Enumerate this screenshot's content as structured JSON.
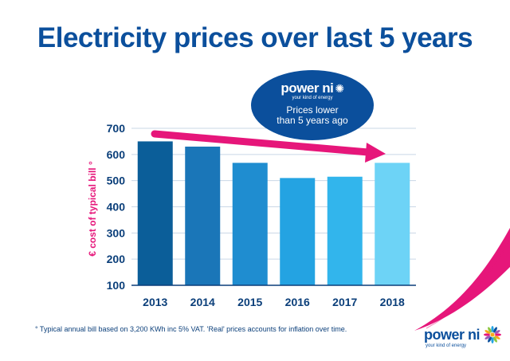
{
  "title": "Electricity prices over last 5 years",
  "callout": {
    "brand": "power ni",
    "tagline": "your kind of energy",
    "line1": "Prices lower",
    "line2": "than 5 years ago"
  },
  "footnote": "° Typical annual bill based on 3,200 KWh inc 5% VAT. 'Real' prices accounts for inflation over time.",
  "logo": {
    "brand": "power ni",
    "tagline": "your kind of energy"
  },
  "colors": {
    "title": "#0b4f9c",
    "accent": "#e6167a",
    "axis_text": "#0b3f7a"
  },
  "icons": {
    "callout_sun": "sun-icon",
    "logo_flower": "flower-icon"
  },
  "chart_data": {
    "type": "bar",
    "categories": [
      "2013",
      "2014",
      "2015",
      "2016",
      "2017",
      "2018"
    ],
    "values": [
      650,
      630,
      568,
      510,
      515,
      568
    ],
    "bar_colors": [
      "#0b5e99",
      "#1a76b8",
      "#1f8dd0",
      "#24a3e2",
      "#32b5ec",
      "#6dd3f6"
    ],
    "ylabel": "€ cost of typical bill °",
    "ylim": [
      100,
      700
    ],
    "yticks": [
      100,
      200,
      300,
      400,
      500,
      600,
      700
    ],
    "grid": true,
    "trend_arrow": "downward from 2013 to 2018"
  }
}
